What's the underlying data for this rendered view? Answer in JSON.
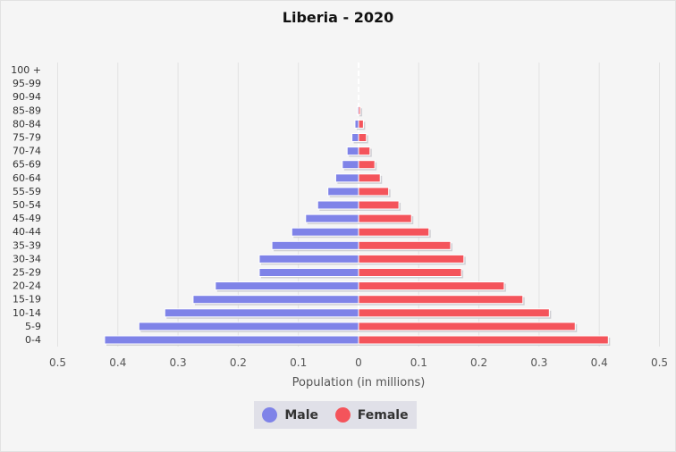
{
  "chart_data": {
    "type": "bar",
    "orientation": "horizontal-pyramid",
    "title": "Liberia - 2020",
    "xlabel": "Population (in millions)",
    "xlim": [
      -0.5,
      0.5
    ],
    "xticks": [
      "0.5",
      "0.4",
      "0.3",
      "0.2",
      "0.1",
      "0",
      "0.1",
      "0.2",
      "0.3",
      "0.4",
      "0.5"
    ],
    "grid": true,
    "legend_position": "bottom",
    "categories": [
      "0-4",
      "5-9",
      "10-14",
      "15-19",
      "20-24",
      "25-29",
      "30-34",
      "35-39",
      "40-44",
      "45-49",
      "50-54",
      "55-59",
      "60-64",
      "65-69",
      "70-74",
      "75-79",
      "80-84",
      "85-89",
      "90-94",
      "95-99",
      "100 +"
    ],
    "series": [
      {
        "name": "Male",
        "color": "#7f83e8",
        "values": [
          0.422,
          0.365,
          0.322,
          0.275,
          0.238,
          0.165,
          0.165,
          0.144,
          0.111,
          0.088,
          0.068,
          0.051,
          0.038,
          0.027,
          0.019,
          0.011,
          0.006,
          0.002,
          0,
          0,
          0
        ]
      },
      {
        "name": "Female",
        "color": "#f4545b",
        "values": [
          0.415,
          0.36,
          0.317,
          0.273,
          0.242,
          0.171,
          0.175,
          0.153,
          0.117,
          0.088,
          0.067,
          0.05,
          0.036,
          0.027,
          0.019,
          0.013,
          0.008,
          0.003,
          0,
          0,
          0
        ]
      }
    ]
  }
}
